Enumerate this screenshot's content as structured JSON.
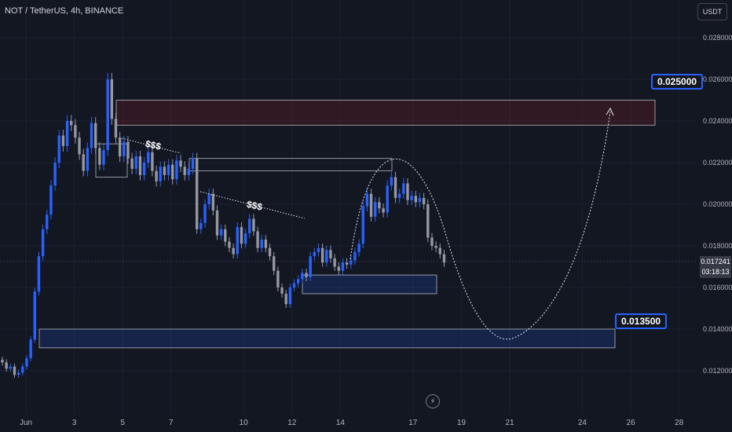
{
  "title": "NOT / TetherUS, 4h, BINANCE",
  "currency_button": "USDT",
  "current_price": {
    "value": "0.017241",
    "countdown": "03:18:13"
  },
  "target_high_label": "0.025000",
  "target_low_label": "0.013500",
  "liquidity_label": "$$$",
  "colors": {
    "background": "#131722",
    "bull": "#2962ff",
    "bear": "#9598a1",
    "box": "#b2b5be",
    "label_border": "#2962ff"
  },
  "chart_data": {
    "type": "candlestick",
    "timeframe": "4h",
    "y_ticks": [
      "0.028000",
      "0.026000",
      "0.024000",
      "0.022000",
      "0.020000",
      "0.018000",
      "0.016000",
      "0.014000",
      "0.012000"
    ],
    "ylim": [
      0.0108,
      0.0291
    ],
    "x_ticks": [
      {
        "label": "Jun",
        "day": 1
      },
      {
        "label": "3",
        "day": 3
      },
      {
        "label": "5",
        "day": 5
      },
      {
        "label": "7",
        "day": 7
      },
      {
        "label": "10",
        "day": 10
      },
      {
        "label": "12",
        "day": 12
      },
      {
        "label": "14",
        "day": 14
      },
      {
        "label": "17",
        "day": 17
      },
      {
        "label": "19",
        "day": 19
      },
      {
        "label": "21",
        "day": 21
      },
      {
        "label": "24",
        "day": 24
      },
      {
        "label": "26",
        "day": 26
      },
      {
        "label": "28",
        "day": 28
      }
    ],
    "closes": [
      0.0124,
      0.0121,
      0.0122,
      0.0118,
      0.0119,
      0.0122,
      0.0126,
      0.0135,
      0.0158,
      0.0175,
      0.0188,
      0.0195,
      0.0209,
      0.022,
      0.0233,
      0.0228,
      0.024,
      0.0238,
      0.0232,
      0.0224,
      0.0216,
      0.0227,
      0.0239,
      0.0227,
      0.0219,
      0.0226,
      0.026,
      0.0241,
      0.0232,
      0.0223,
      0.023,
      0.0222,
      0.0217,
      0.0223,
      0.0214,
      0.022,
      0.0225,
      0.0216,
      0.0211,
      0.0218,
      0.0214,
      0.0219,
      0.0212,
      0.0221,
      0.0218,
      0.0214,
      0.0217,
      0.0222,
      0.0188,
      0.0191,
      0.02,
      0.0205,
      0.0197,
      0.0185,
      0.0188,
      0.0182,
      0.0179,
      0.0176,
      0.0189,
      0.0181,
      0.0186,
      0.0193,
      0.0187,
      0.0179,
      0.0183,
      0.0179,
      0.0175,
      0.0168,
      0.016,
      0.0157,
      0.0152,
      0.016,
      0.0162,
      0.0164,
      0.0167,
      0.0165,
      0.0175,
      0.0177,
      0.0179,
      0.0172,
      0.0178,
      0.0174,
      0.017,
      0.0168,
      0.0172,
      0.0171,
      0.0173,
      0.0177,
      0.0181,
      0.0199,
      0.0205,
      0.0194,
      0.0201,
      0.0198,
      0.0196,
      0.0209,
      0.0213,
      0.0203,
      0.0205,
      0.021,
      0.0202,
      0.0204,
      0.0201,
      0.0203,
      0.02,
      0.0184,
      0.018,
      0.0179,
      0.0176,
      0.0172
    ],
    "annotations": [
      {
        "type": "zone",
        "label": "0.025000",
        "low": 0.0238,
        "high": 0.025
      },
      {
        "type": "zone",
        "label": "0.013500",
        "low": 0.0131,
        "high": 0.014
      },
      {
        "type": "zone",
        "low": 0.0157,
        "high": 0.0166
      },
      {
        "type": "zone",
        "low": 0.0216,
        "high": 0.0222
      },
      {
        "type": "zone",
        "low": 0.0213,
        "high": 0.0229
      },
      {
        "type": "liquidity_line",
        "label": "$$$"
      },
      {
        "type": "liquidity_line",
        "label": "$$$"
      },
      {
        "type": "projection_path"
      }
    ]
  }
}
